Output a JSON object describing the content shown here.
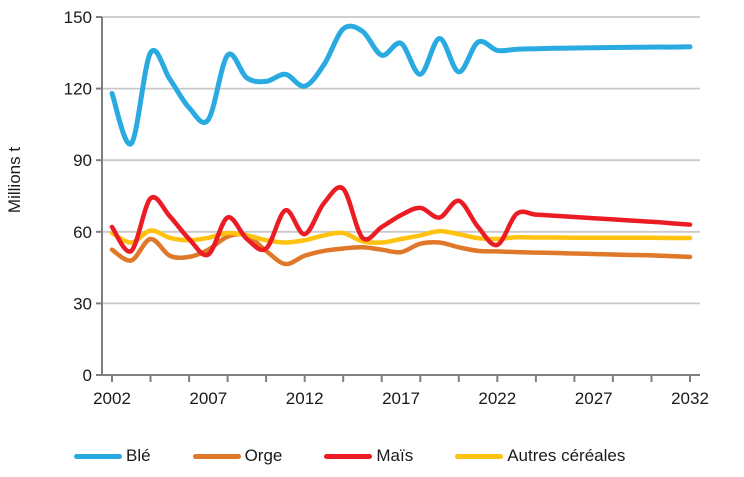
{
  "chart_data": {
    "type": "line",
    "title": "",
    "xlabel": "",
    "ylabel": "Millions t",
    "ylim": [
      0,
      150
    ],
    "yticks": [
      0,
      30,
      60,
      90,
      120,
      150
    ],
    "xlim": [
      2002,
      2032
    ],
    "xtick_labels": [
      2002,
      2007,
      2012,
      2017,
      2022,
      2027,
      2032
    ],
    "xticks_minor_every": 2,
    "grid": true,
    "legend_position": "bottom",
    "x": [
      2002,
      2003,
      2004,
      2005,
      2006,
      2007,
      2008,
      2009,
      2010,
      2011,
      2012,
      2013,
      2014,
      2015,
      2016,
      2017,
      2018,
      2019,
      2020,
      2021,
      2022,
      2023,
      2024,
      2025,
      2026,
      2027,
      2028,
      2029,
      2030,
      2031,
      2032
    ],
    "series": [
      {
        "name": "Blé",
        "color": "#29ABE2",
        "values": [
          118,
          97,
          135,
          124,
          112,
          107,
          134,
          124.5,
          123,
          126,
          121,
          130,
          145,
          144,
          134,
          139,
          126,
          141,
          127,
          139.5,
          136,
          136.5,
          136.7,
          136.9,
          137,
          137.1,
          137.2,
          137.3,
          137.4,
          137.4,
          137.5
        ]
      },
      {
        "name": "Orge",
        "color": "#E0782A",
        "values": [
          52.5,
          48,
          57,
          50,
          49.5,
          52.5,
          58,
          58.5,
          52,
          46.5,
          50,
          52,
          53,
          53.5,
          52.5,
          51.5,
          55,
          55.5,
          53.5,
          52,
          51.8,
          51.5,
          51.3,
          51.1,
          50.9,
          50.7,
          50.5,
          50.3,
          50.1,
          49.8,
          49.5
        ]
      },
      {
        "name": "Maïs",
        "color": "#EC1C24",
        "values": [
          62,
          52,
          74,
          66.5,
          57,
          50.5,
          66,
          57,
          53,
          69,
          59,
          72,
          78,
          57.5,
          62,
          67,
          70,
          66,
          73,
          62,
          54.5,
          67.5,
          67.2,
          66.7,
          66.2,
          65.7,
          65.2,
          64.7,
          64.2,
          63.6,
          63
        ]
      },
      {
        "name": "Autres céréales",
        "color": "#FFC20E",
        "values": [
          59.5,
          55.5,
          60.5,
          57.5,
          56.5,
          57.5,
          59.5,
          58.5,
          56.5,
          55.5,
          56.5,
          58.5,
          59.5,
          56,
          55.5,
          57,
          58.5,
          60.3,
          59,
          57.3,
          57,
          57.7,
          57.6,
          57.6,
          57.5,
          57.5,
          57.5,
          57.5,
          57.5,
          57.4,
          57.4
        ]
      }
    ],
    "style": {
      "grid_color": "#C9C9C9",
      "axis_color": "#7F7F7F",
      "text_color": "#1a1a1a"
    }
  }
}
